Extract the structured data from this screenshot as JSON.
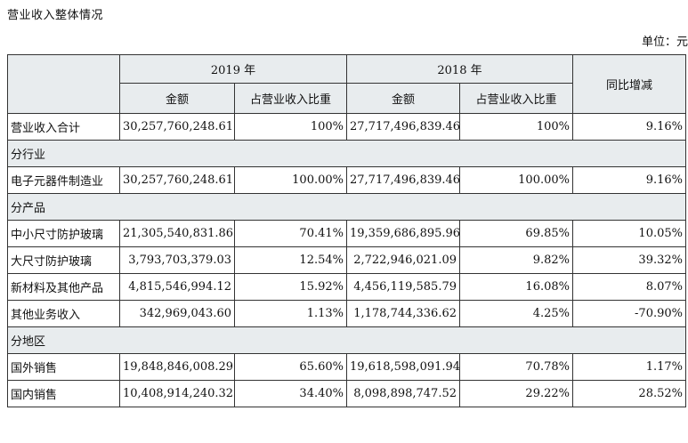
{
  "title": "营业收入整体情况",
  "unit": "单位：元",
  "header": {
    "year_2019": "2019 年",
    "year_2018": "2018 年",
    "amount": "金额",
    "share": "占营业收入比重",
    "yoy": "同比增减"
  },
  "total": {
    "label": "营业收入合计",
    "amt_2019": "30,257,760,248.61",
    "pct_2019": "100%",
    "amt_2018": "27,717,496,839.46",
    "pct_2018": "100%",
    "yoy": "9.16%"
  },
  "sections": {
    "industry": "分行业",
    "product": "分产品",
    "region": "分地区"
  },
  "industry_rows": [
    {
      "label": "电子元器件制造业",
      "amt_2019": "30,257,760,248.61",
      "pct_2019": "100.00%",
      "amt_2018": "27,717,496,839.46",
      "pct_2018": "100.00%",
      "yoy": "9.16%"
    }
  ],
  "product_rows": [
    {
      "label": "中小尺寸防护玻璃",
      "amt_2019": "21,305,540,831.86",
      "pct_2019": "70.41%",
      "amt_2018": "19,359,686,895.96",
      "pct_2018": "69.85%",
      "yoy": "10.05%"
    },
    {
      "label": "大尺寸防护玻璃",
      "amt_2019": "3,793,703,379.03",
      "pct_2019": "12.54%",
      "amt_2018": "2,722,946,021.09",
      "pct_2018": "9.82%",
      "yoy": "39.32%"
    },
    {
      "label": "新材料及其他产品",
      "amt_2019": "4,815,546,994.12",
      "pct_2019": "15.92%",
      "amt_2018": "4,456,119,585.79",
      "pct_2018": "16.08%",
      "yoy": "8.07%"
    },
    {
      "label": "其他业务收入",
      "amt_2019": "342,969,043.60",
      "pct_2019": "1.13%",
      "amt_2018": "1,178,744,336.62",
      "pct_2018": "4.25%",
      "yoy": "-70.90%"
    }
  ],
  "region_rows": [
    {
      "label": "国外销售",
      "amt_2019": "19,848,846,008.29",
      "pct_2019": "65.60%",
      "amt_2018": "19,618,598,091.94",
      "pct_2018": "70.78%",
      "yoy": "1.17%"
    },
    {
      "label": "国内销售",
      "amt_2019": "10,408,914,240.32",
      "pct_2019": "34.40%",
      "amt_2018": "8,098,898,747.52",
      "pct_2018": "29.22%",
      "yoy": "28.52%"
    }
  ]
}
